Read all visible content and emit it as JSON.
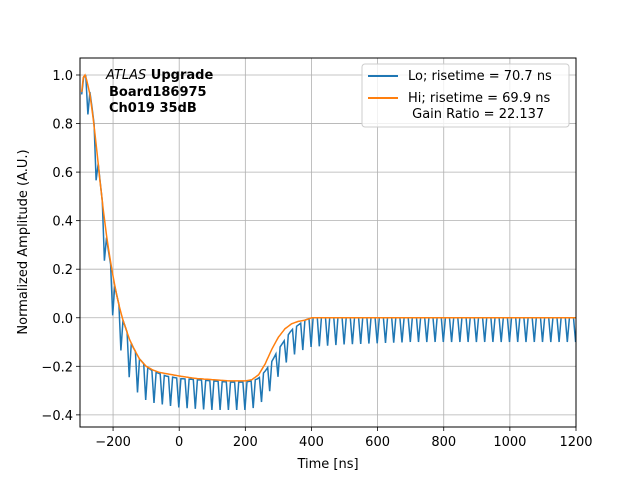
{
  "chart_data": {
    "type": "line",
    "xlabel": "Time [ns]",
    "ylabel": "Normalized Amplitude (A.U.)",
    "xlim": [
      -300,
      1200
    ],
    "ylim": [
      -0.45,
      1.07
    ],
    "xticks": [
      -200,
      0,
      200,
      400,
      600,
      800,
      1000,
      1200
    ],
    "xtick_labels": [
      "−200",
      "0",
      "200",
      "400",
      "600",
      "800",
      "1000",
      "1200"
    ],
    "yticks": [
      -0.4,
      -0.2,
      0.0,
      0.2,
      0.4,
      0.6,
      0.8,
      1.0
    ],
    "ytick_labels": [
      "−0.4",
      "−0.2",
      "0.0",
      "0.2",
      "0.4",
      "0.6",
      "0.8",
      "1.0"
    ],
    "grid": true,
    "legend_position": "top-right",
    "annotation": {
      "line1_italic": "ATLAS",
      "line1_bold": " Upgrade",
      "line2": "Board186975",
      "line3": "Ch019 35dB"
    },
    "series": [
      {
        "name": "Lo; risetime = 70.7 ns",
        "color": "#1f77b4",
        "sample_period": 6.25,
        "dip_period": 25,
        "x": [
          -295,
          -290,
          -285,
          -280,
          -270,
          -260,
          -250,
          -240,
          -230,
          -220,
          -210,
          -200,
          -190,
          -180,
          -170,
          -160,
          -150,
          -140,
          -120,
          -100,
          -80,
          -60,
          -40,
          -20,
          0,
          50,
          100,
          150,
          200,
          220,
          240,
          260,
          280,
          300,
          320,
          340,
          360,
          380,
          400,
          450,
          500,
          600,
          700,
          800,
          1000,
          1200
        ],
        "envelope": [
          0.92,
          0.99,
          1.0,
          0.99,
          0.93,
          0.83,
          0.7,
          0.57,
          0.45,
          0.33,
          0.24,
          0.16,
          0.1,
          0.04,
          -0.01,
          -0.05,
          -0.09,
          -0.12,
          -0.17,
          -0.2,
          -0.22,
          -0.23,
          -0.24,
          -0.245,
          -0.25,
          -0.255,
          -0.26,
          -0.265,
          -0.265,
          -0.26,
          -0.25,
          -0.22,
          -0.18,
          -0.13,
          -0.09,
          -0.05,
          -0.03,
          -0.01,
          0.0,
          0.0,
          0.0,
          0.0,
          0.0,
          0.0,
          0.0,
          0.0
        ],
        "dip_low": [
          0.86,
          0.87,
          0.88,
          0.86,
          0.8,
          0.68,
          0.55,
          0.4,
          0.28,
          0.16,
          0.08,
          0.0,
          -0.06,
          -0.12,
          -0.16,
          -0.21,
          -0.25,
          -0.28,
          -0.32,
          -0.34,
          -0.35,
          -0.355,
          -0.36,
          -0.365,
          -0.37,
          -0.375,
          -0.38,
          -0.38,
          -0.38,
          -0.375,
          -0.36,
          -0.33,
          -0.29,
          -0.24,
          -0.19,
          -0.16,
          -0.14,
          -0.13,
          -0.12,
          -0.115,
          -0.11,
          -0.105,
          -0.1,
          -0.1,
          -0.1,
          -0.1
        ]
      },
      {
        "name": "Hi; risetime = 69.9 ns\n Gain Ratio = 22.137",
        "color": "#ff7f0e",
        "x": [
          -295,
          -290,
          -285,
          -280,
          -270,
          -260,
          -250,
          -240,
          -230,
          -220,
          -210,
          -200,
          -190,
          -180,
          -170,
          -160,
          -150,
          -140,
          -120,
          -100,
          -80,
          -60,
          -40,
          -20,
          0,
          50,
          100,
          150,
          200,
          220,
          240,
          260,
          280,
          300,
          320,
          340,
          360,
          380,
          400,
          450,
          500,
          600,
          700,
          800,
          1000,
          1200
        ],
        "values": [
          0.93,
          0.99,
          1.0,
          0.98,
          0.92,
          0.82,
          0.7,
          0.57,
          0.45,
          0.34,
          0.25,
          0.17,
          0.1,
          0.04,
          -0.01,
          -0.05,
          -0.09,
          -0.12,
          -0.17,
          -0.2,
          -0.215,
          -0.225,
          -0.23,
          -0.235,
          -0.24,
          -0.25,
          -0.255,
          -0.26,
          -0.26,
          -0.255,
          -0.235,
          -0.19,
          -0.13,
          -0.08,
          -0.045,
          -0.025,
          -0.015,
          -0.01,
          0.0,
          0.0,
          0.0,
          0.0,
          0.0,
          0.0,
          0.0,
          0.0
        ]
      }
    ]
  }
}
